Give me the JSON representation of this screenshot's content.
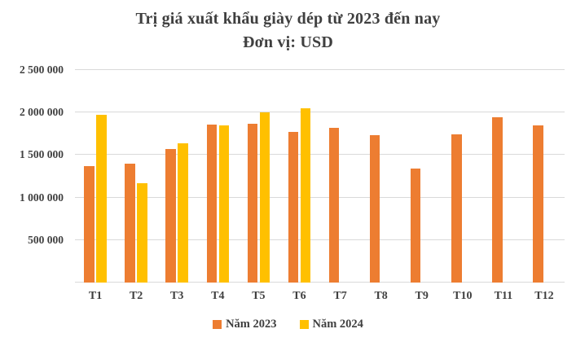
{
  "chart_data": {
    "type": "bar",
    "title": "Trị giá xuất khẩu giày dép từ 2023 đến nay",
    "subtitle": "Đơn vị: USD",
    "xlabel": "",
    "ylabel": "",
    "ylim": [
      0,
      2500000
    ],
    "grid": "horizontal",
    "legend_position": "bottom",
    "categories": [
      "T1",
      "T2",
      "T3",
      "T4",
      "T5",
      "T6",
      "T7",
      "T8",
      "T9",
      "T10",
      "T11",
      "T12"
    ],
    "series": [
      {
        "name": "Năm 2023",
        "key": "nam-2023",
        "color": "#ED7D31",
        "values": [
          1370000,
          1400000,
          1570000,
          1860000,
          1870000,
          1770000,
          1820000,
          1730000,
          1340000,
          1740000,
          1940000,
          1850000
        ]
      },
      {
        "name": "Năm 2024",
        "key": "nam-2024",
        "color": "#FFC000",
        "values": [
          1970000,
          1170000,
          1640000,
          1850000,
          2000000,
          2050000,
          null,
          null,
          null,
          null,
          null,
          null
        ]
      }
    ],
    "yticks": [
      {
        "value": 500000,
        "label": "500 000"
      },
      {
        "value": 1000000,
        "label": "1 000 000"
      },
      {
        "value": 1500000,
        "label": "1 500 000"
      },
      {
        "value": 2000000,
        "label": "2 000 000"
      },
      {
        "value": 2500000,
        "label": "2 500 000"
      }
    ],
    "colors": {
      "background": "#FFFFFF",
      "gridline": "#D9D9D9",
      "text": "#3F3F3F"
    }
  }
}
